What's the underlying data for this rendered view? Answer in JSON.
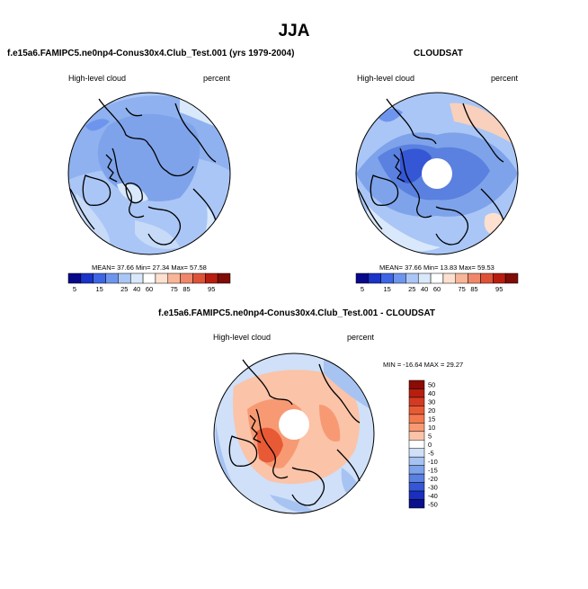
{
  "title": "JJA",
  "panels": [
    {
      "title": "f.e15a6.FAMIPC5.ne0np4-Conus30x4.Club_Test.001 (yrs 1979-2004)",
      "left_label": "High-level cloud",
      "right_label": "percent",
      "stats": "MEAN=  37.66  Min=  27.34  Max=  57.58"
    },
    {
      "title": "CLOUDSAT",
      "left_label": "High-level cloud",
      "right_label": "percent",
      "stats": "MEAN=  37.66  Min=  13.83  Max=  59.53"
    },
    {
      "title": "f.e15a6.FAMIPC5.ne0np4-Conus30x4.Club_Test.001 - CLOUDSAT",
      "left_label": "High-level cloud",
      "right_label": "percent",
      "stats": "MIN = -16.64 MAX =  29.27"
    }
  ],
  "chart_data": [
    {
      "type": "heatmap",
      "projection": "north polar stereographic",
      "title": "f.e15a6.FAMIPC5.ne0np4-Conus30x4.Club_Test.001 (yrs 1979-2004)",
      "variable": "High-level cloud",
      "units": "percent",
      "mean": 37.66,
      "min": 27.34,
      "max": 57.58,
      "colorbar": {
        "labels": [
          "5",
          "15",
          "25",
          "40",
          "60",
          "75",
          "85",
          "95"
        ],
        "colors": [
          "#08088a",
          "#1a33c8",
          "#3d66e5",
          "#6e95ee",
          "#a9c6f6",
          "#d9e9fb",
          "#ffffff",
          "#fde0cf",
          "#f8b597",
          "#f0876a",
          "#de5338",
          "#b71e10",
          "#7f0c06"
        ]
      }
    },
    {
      "type": "heatmap",
      "projection": "north polar stereographic",
      "title": "CLOUDSAT",
      "variable": "High-level cloud",
      "units": "percent",
      "mean": 37.66,
      "min": 13.83,
      "max": 59.53,
      "colorbar": {
        "labels": [
          "5",
          "15",
          "25",
          "40",
          "60",
          "75",
          "85",
          "95"
        ],
        "colors": [
          "#08088a",
          "#1a33c8",
          "#3d66e5",
          "#6e95ee",
          "#a9c6f6",
          "#d9e9fb",
          "#ffffff",
          "#fde0cf",
          "#f8b597",
          "#f0876a",
          "#de5338",
          "#b71e10",
          "#7f0c06"
        ]
      }
    },
    {
      "type": "heatmap",
      "projection": "north polar stereographic",
      "title": "f.e15a6.FAMIPC5.ne0np4-Conus30x4.Club_Test.001 - CLOUDSAT",
      "variable": "High-level cloud",
      "units": "percent",
      "min": -16.64,
      "max": 29.27,
      "colorbar": {
        "labels": [
          "50",
          "40",
          "30",
          "20",
          "15",
          "10",
          "5",
          "0",
          "-5",
          "-10",
          "-15",
          "-20",
          "-30",
          "-40",
          "-50"
        ],
        "colors": [
          "#8b0b05",
          "#b71e10",
          "#d43a22",
          "#e85a35",
          "#f2784d",
          "#f79a74",
          "#fbc3a8",
          "#ffffff",
          "#cfe0f8",
          "#a7c3f2",
          "#7ea3ea",
          "#5a80e0",
          "#3557d6",
          "#1a2fbf",
          "#0a0f8a"
        ]
      }
    }
  ]
}
